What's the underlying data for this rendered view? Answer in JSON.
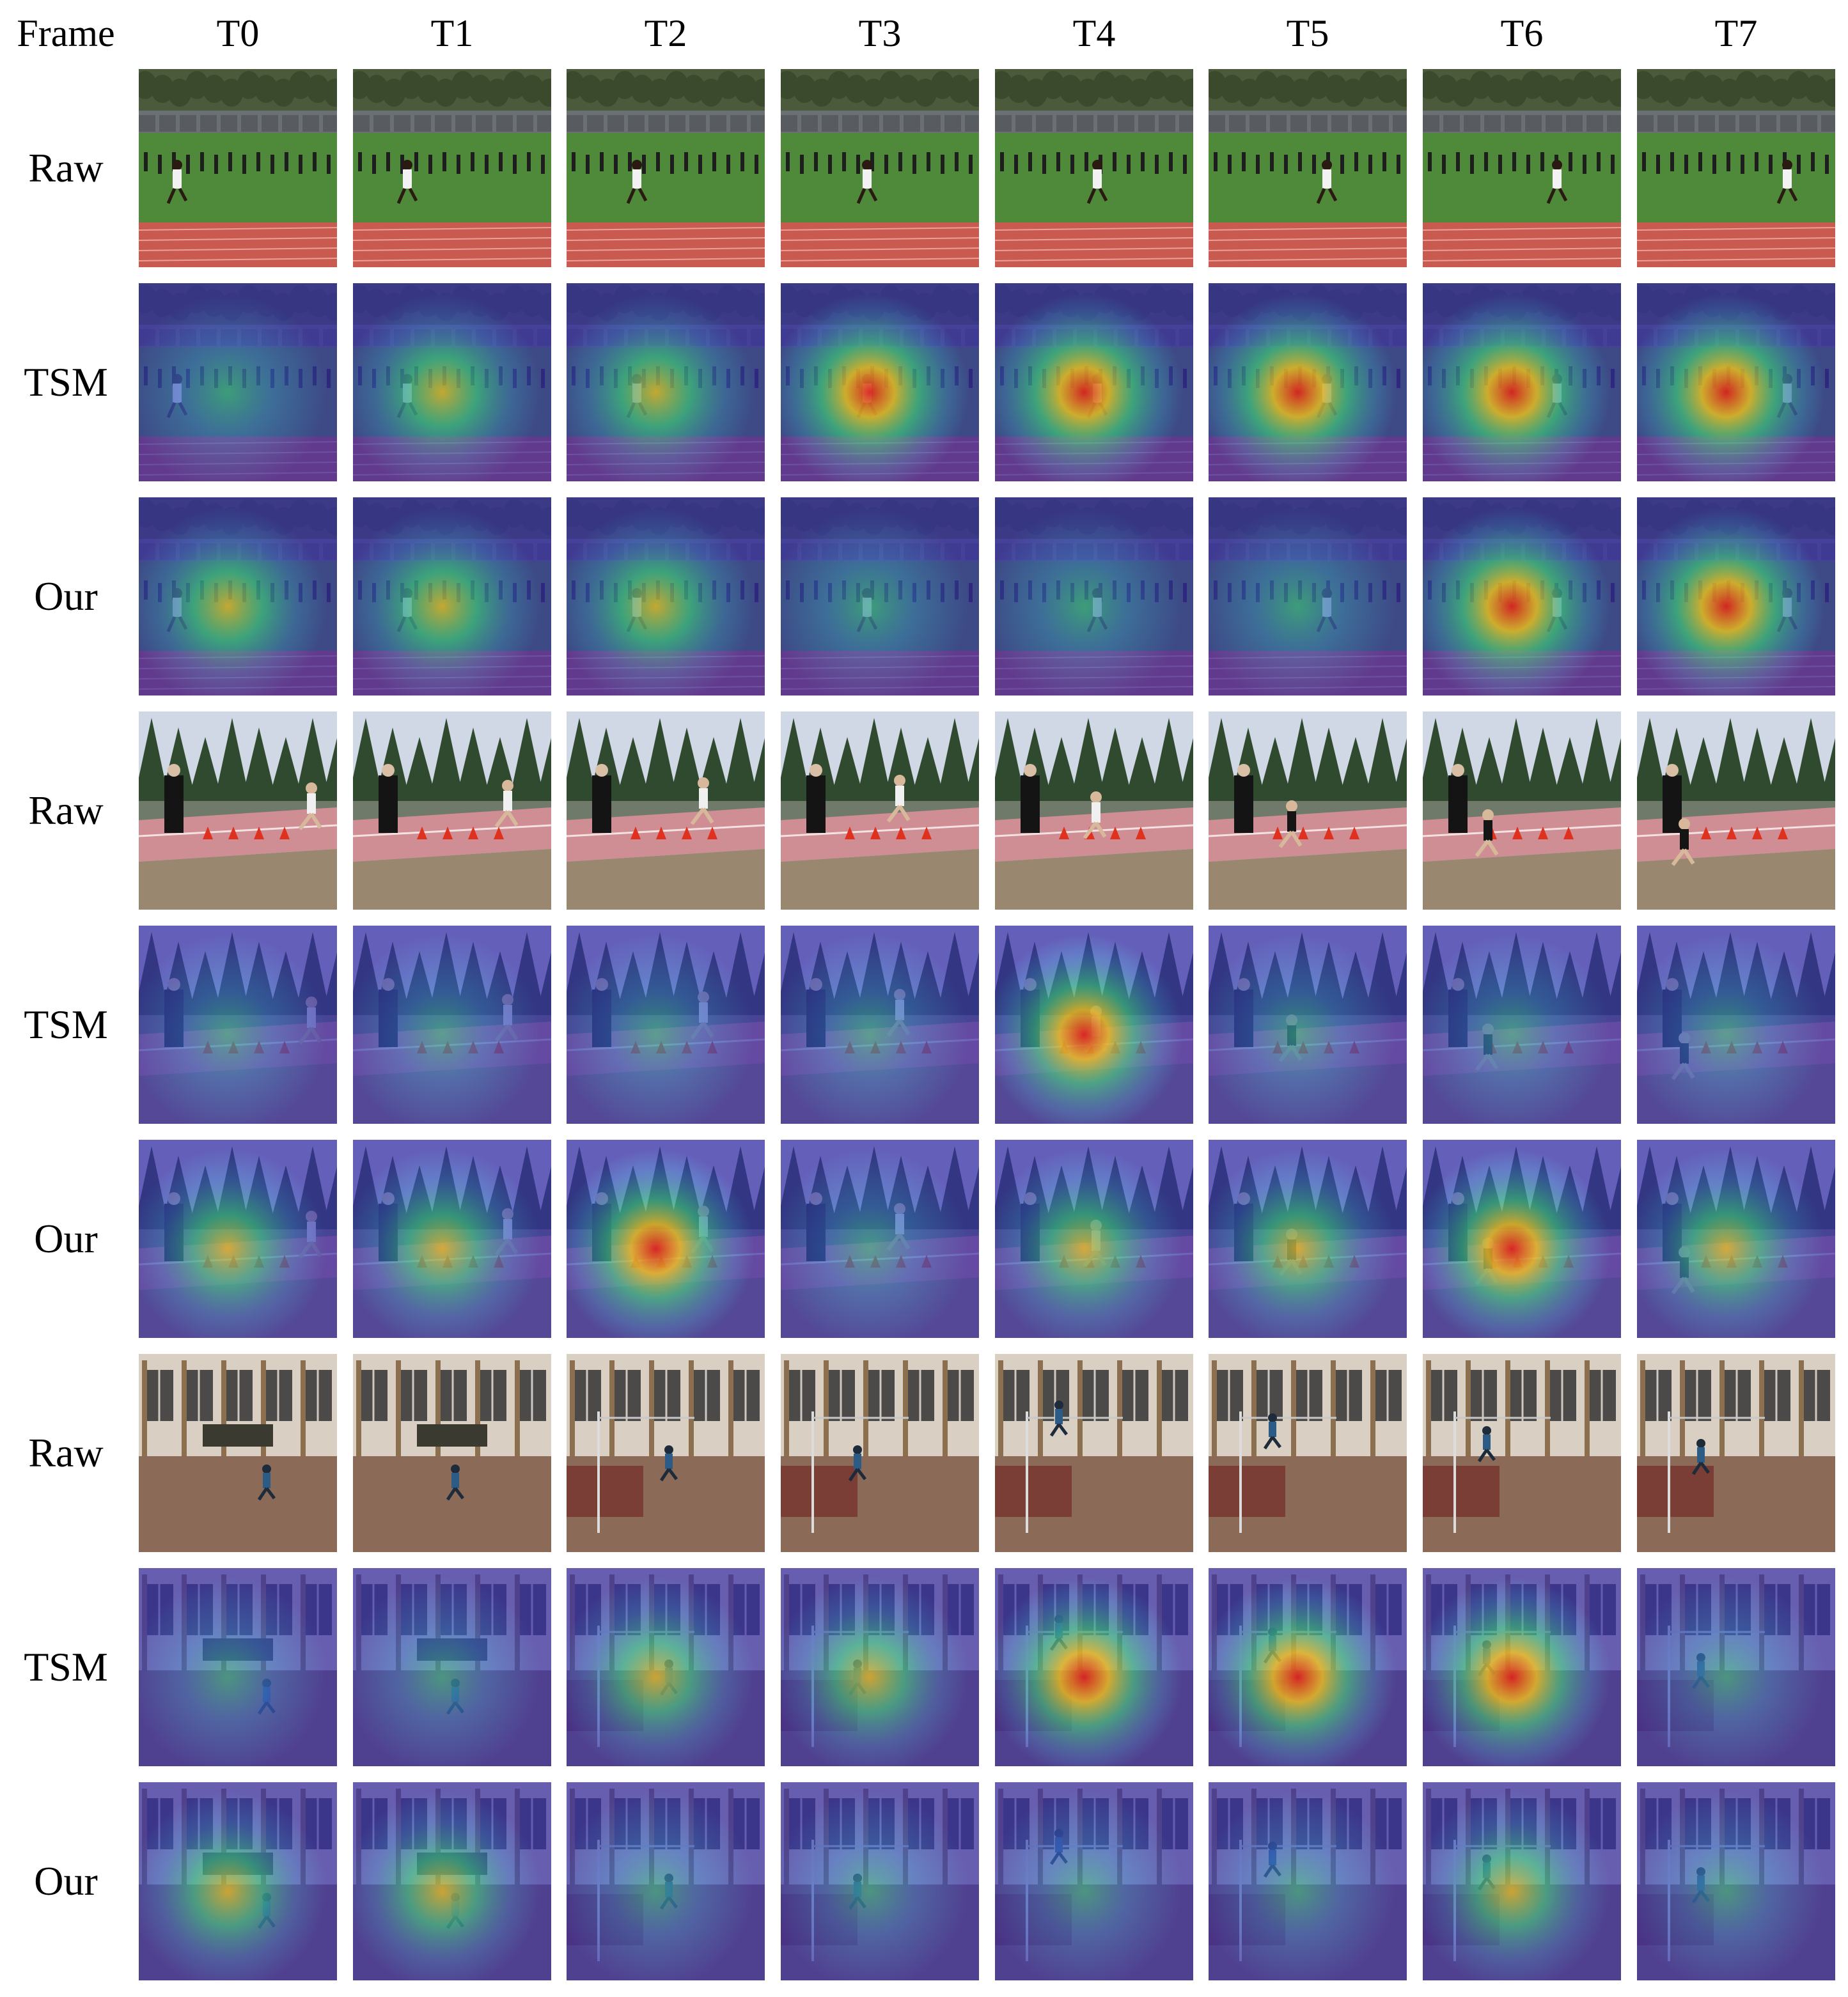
{
  "header": {
    "frame_label": "Frame",
    "frames": [
      "T0",
      "T1",
      "T2",
      "T3",
      "T4",
      "T5",
      "T6",
      "T7"
    ]
  },
  "rows": [
    {
      "label": "Raw",
      "scene": "outdoor-track",
      "kind": "raw"
    },
    {
      "label": "TSM",
      "scene": "outdoor-track",
      "kind": "heat",
      "heat": [
        0.45,
        0.6,
        0.5,
        1.0,
        1.0,
        0.85,
        0.85,
        0.9
      ]
    },
    {
      "label": "Our",
      "scene": "outdoor-track",
      "kind": "heat",
      "heat": [
        0.55,
        0.7,
        0.55,
        0.3,
        0.35,
        0.35,
        0.95,
        0.95
      ]
    },
    {
      "label": "Raw",
      "scene": "long-jump-pit",
      "kind": "raw"
    },
    {
      "label": "TSM",
      "scene": "long-jump-pit",
      "kind": "heat",
      "heat": [
        0.45,
        0.35,
        0.35,
        0.3,
        0.9,
        0.3,
        0.4,
        0.4
      ]
    },
    {
      "label": "Our",
      "scene": "long-jump-pit",
      "kind": "heat",
      "heat": [
        0.75,
        0.5,
        0.8,
        0.45,
        0.55,
        0.5,
        1.0,
        0.65
      ]
    },
    {
      "label": "Raw",
      "scene": "indoor-high-jump",
      "kind": "raw"
    },
    {
      "label": "TSM",
      "scene": "indoor-high-jump",
      "kind": "heat",
      "heat": [
        0.2,
        0.2,
        0.6,
        0.65,
        0.8,
        1.0,
        0.9,
        0.45
      ]
    },
    {
      "label": "Our",
      "scene": "indoor-high-jump",
      "kind": "heat",
      "heat": [
        0.65,
        0.55,
        0.3,
        0.35,
        0.3,
        0.45,
        0.5,
        0.3
      ]
    }
  ],
  "colors": {
    "heat_low": "#3b2fb0",
    "heat_high": "#e0201a",
    "grass": "#4f8a3a",
    "track": "#c95a4f"
  }
}
